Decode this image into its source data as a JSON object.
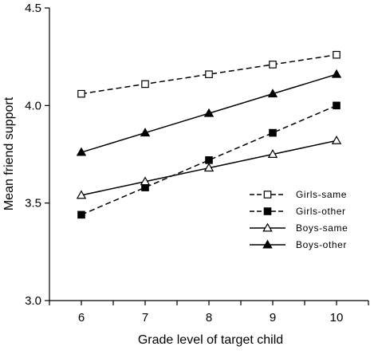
{
  "chart_data": {
    "type": "line",
    "title": "",
    "xlabel": "Grade level of target child",
    "ylabel": "Mean friend support",
    "x": [
      6,
      7,
      8,
      9,
      10
    ],
    "xlim": [
      5.5,
      10.5
    ],
    "ylim": [
      3.0,
      4.5
    ],
    "yticks": [
      "3.0",
      "3.5",
      "4.0",
      "4.5"
    ],
    "xticks": [
      "6",
      "7",
      "8",
      "9",
      "10"
    ],
    "grid": false,
    "legend_position": "right",
    "series": [
      {
        "name": "Girls-same",
        "values": [
          4.06,
          4.11,
          4.16,
          4.21,
          4.26
        ],
        "line": "dashed",
        "marker": "open-square"
      },
      {
        "name": "Girls-other",
        "values": [
          3.44,
          3.58,
          3.72,
          3.86,
          4.0
        ],
        "line": "dashed",
        "marker": "filled-square"
      },
      {
        "name": "Boys-same",
        "values": [
          3.54,
          3.61,
          3.68,
          3.75,
          3.82
        ],
        "line": "solid",
        "marker": "open-triangle"
      },
      {
        "name": "Boys-other",
        "values": [
          3.76,
          3.86,
          3.96,
          4.06,
          4.16
        ],
        "line": "solid",
        "marker": "filled-triangle"
      }
    ]
  }
}
